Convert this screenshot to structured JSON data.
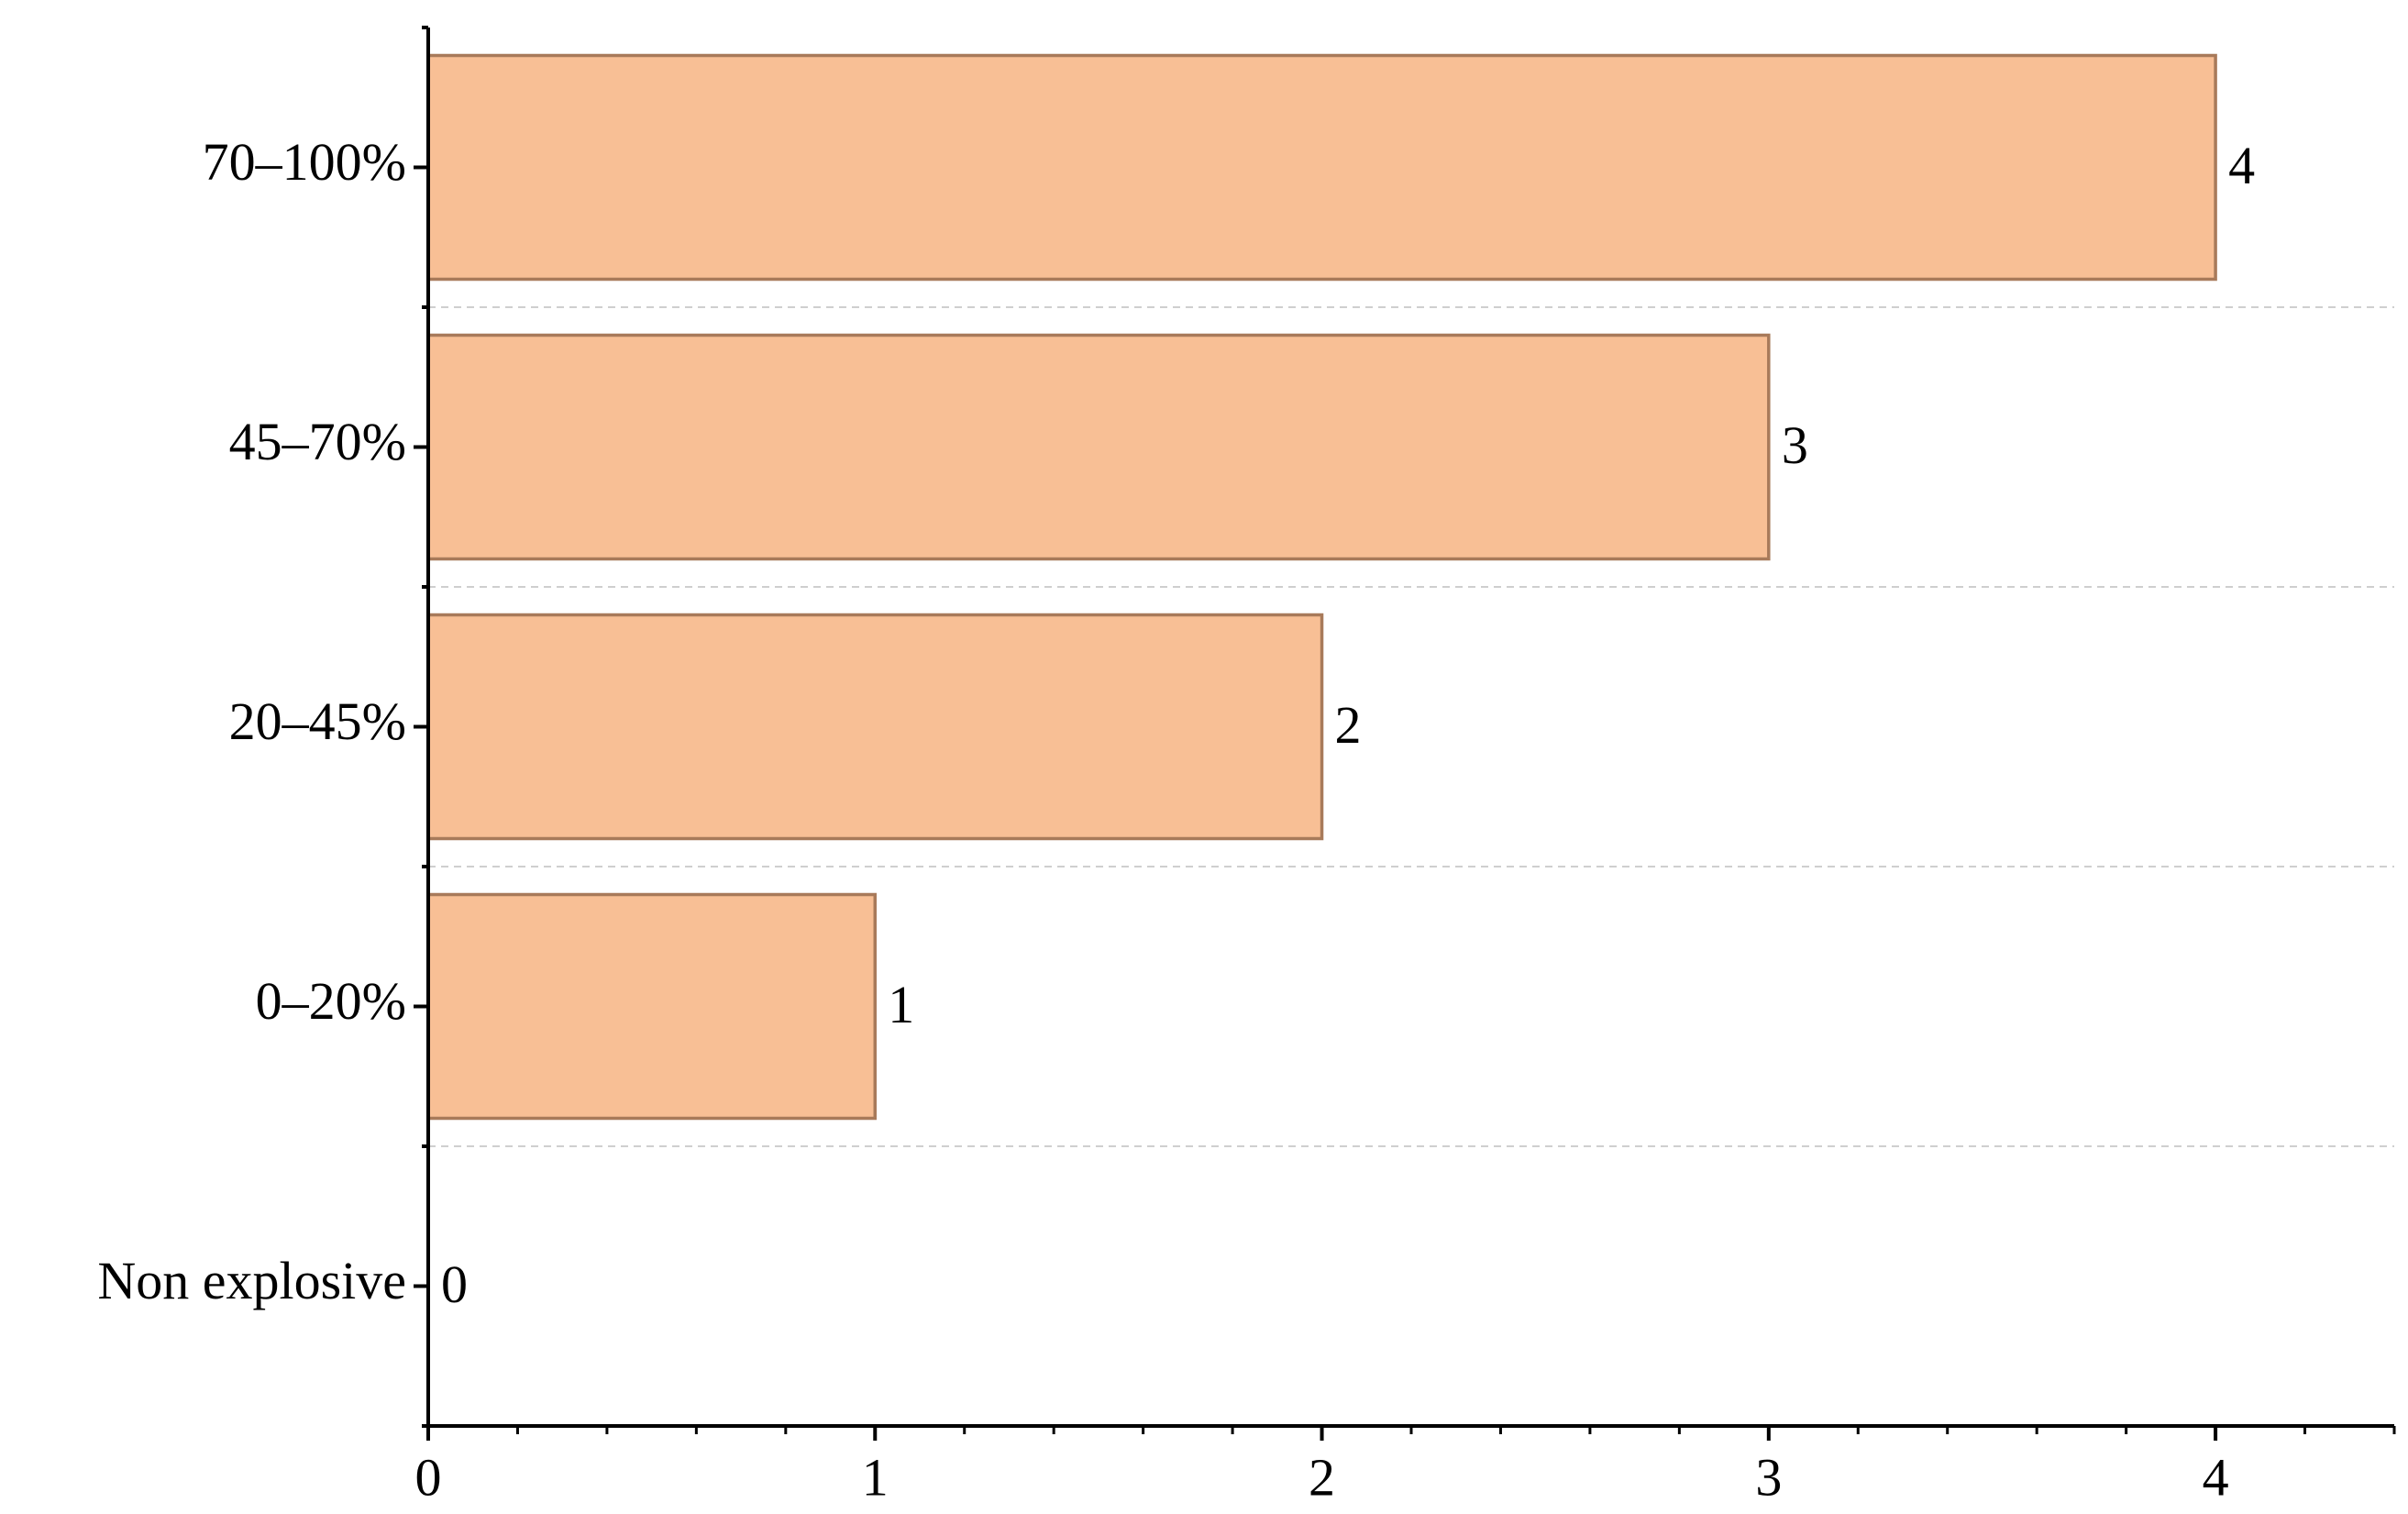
{
  "chart_data": {
    "type": "bar",
    "orientation": "horizontal",
    "categories": [
      "Non explosive",
      "0–20%",
      "20–45%",
      "45–70%",
      "70–100%"
    ],
    "values": [
      0,
      1,
      2,
      3,
      4
    ],
    "color": "#f8bf95",
    "edge_color": "#a87a5a",
    "xlim": [
      0,
      4.4
    ],
    "xticks": [
      0,
      1,
      2,
      3,
      4
    ],
    "grid": true
  }
}
